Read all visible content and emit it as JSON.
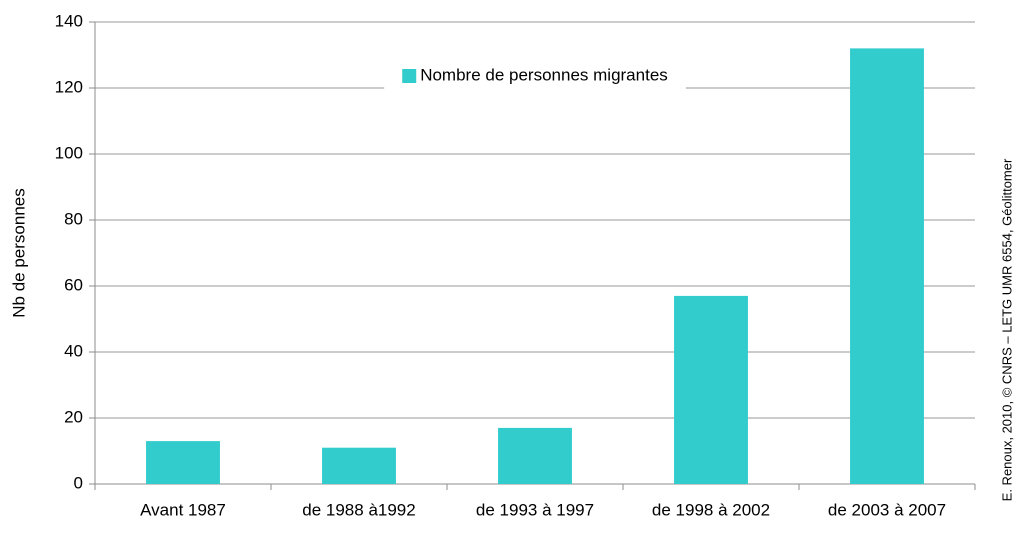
{
  "chart_data": {
    "type": "bar",
    "categories": [
      "Avant 1987",
      "de 1988 à1992",
      "de 1993 à 1997",
      "de 1998 à 2002",
      "de 2003 à 2007"
    ],
    "series": [
      {
        "name": "Nombre de personnes migrantes",
        "color": "#33cccc",
        "values": [
          13,
          11,
          17,
          57,
          132
        ]
      }
    ],
    "ylabel": "Nb de personnes",
    "ylim": [
      0,
      140
    ],
    "yticks": [
      0,
      20,
      40,
      60,
      80,
      100,
      120,
      140
    ],
    "grid": true,
    "legend": "top",
    "annotation": "E. Renoux, 2010, © CNRS – LETG UMR 6554, Géolittomer"
  }
}
